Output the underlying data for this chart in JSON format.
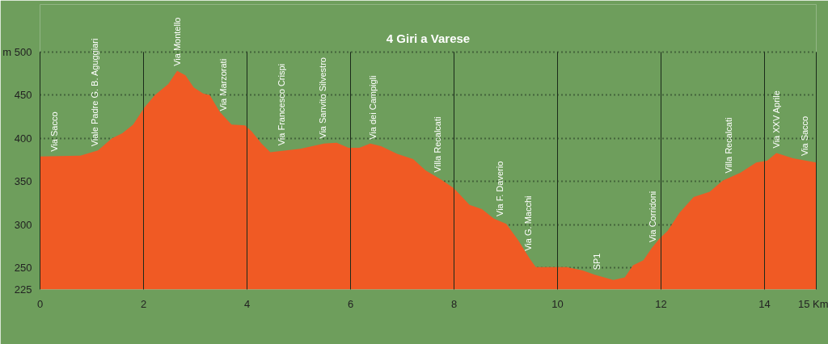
{
  "chart_data": {
    "type": "area",
    "title": "4 Giri a Varese",
    "x": [
      0,
      0.78,
      1.12,
      1.39,
      1.59,
      1.8,
      2.01,
      2.22,
      2.48,
      2.65,
      2.81,
      2.97,
      3.15,
      3.28,
      3.47,
      3.7,
      3.96,
      4.09,
      4.28,
      4.45,
      5.03,
      5.49,
      5.73,
      5.96,
      6.17,
      6.38,
      6.59,
      6.9,
      7.21,
      7.45,
      7.76,
      8.0,
      8.3,
      8.54,
      8.77,
      9.01,
      9.24,
      9.47,
      9.58,
      9.86,
      10.18,
      10.49,
      10.72,
      11.08,
      11.3,
      11.46,
      11.66,
      11.82,
      11.97,
      12.13,
      12.36,
      12.63,
      12.94,
      13.19,
      13.53,
      13.84,
      14.05,
      14.23,
      14.55,
      15
    ],
    "series": [
      {
        "color": "#f05a24",
        "values": [
          379,
          380,
          386,
          400,
          406,
          416,
          435,
          450,
          463,
          478,
          473,
          459,
          452,
          450,
          431,
          416,
          415,
          408,
          394,
          384,
          388,
          394,
          395,
          389,
          389,
          394,
          391,
          382,
          376,
          363,
          352,
          342,
          323,
          318,
          307,
          301,
          282,
          260,
          251,
          251,
          251,
          247,
          242,
          236,
          239,
          253,
          259,
          273,
          284,
          293,
          314,
          332,
          338,
          351,
          360,
          372,
          374,
          383,
          377,
          372
        ]
      }
    ],
    "xlim": [
      0,
      15
    ],
    "ylim": [
      225,
      555
    ],
    "xticks": [
      0,
      2,
      4,
      6,
      8,
      10,
      12,
      14,
      {
        "value": 15,
        "label": "15 Km"
      }
    ],
    "yticks": [
      225,
      250,
      300,
      350,
      400,
      450,
      {
        "value": 500,
        "label": "m 500"
      }
    ],
    "grid": true,
    "annotations": [
      {
        "text": "Via Sacco",
        "x": 0.27,
        "y": 379
      },
      {
        "text": "Viale Padre G. B. Aguggiari",
        "x": 1.05,
        "y": 385
      },
      {
        "text": "Via Montello",
        "x": 2.65,
        "y": 478
      },
      {
        "text": "Via Marzorati",
        "x": 3.54,
        "y": 426
      },
      {
        "text": "Via Francesco Crispi",
        "x": 4.67,
        "y": 386
      },
      {
        "text": "Via Sanvito Silvestro",
        "x": 5.46,
        "y": 394
      },
      {
        "text": "Via dei Campigli",
        "x": 6.43,
        "y": 393
      },
      {
        "text": "Villa Recalcati",
        "x": 7.68,
        "y": 355
      },
      {
        "text": "Via F. Daverio",
        "x": 8.88,
        "y": 304
      },
      {
        "text": "Via G. Macchi",
        "x": 9.43,
        "y": 264
      },
      {
        "text": "SP1",
        "x": 10.75,
        "y": 242
      },
      {
        "text": "Via Corridoni",
        "x": 11.83,
        "y": 274
      },
      {
        "text": "Villa Recalcati",
        "x": 13.3,
        "y": 354
      },
      {
        "text": "Via XXV Aprile",
        "x": 14.23,
        "y": 383
      },
      {
        "text": "Via Sacco",
        "x": 14.78,
        "y": 374
      }
    ]
  }
}
